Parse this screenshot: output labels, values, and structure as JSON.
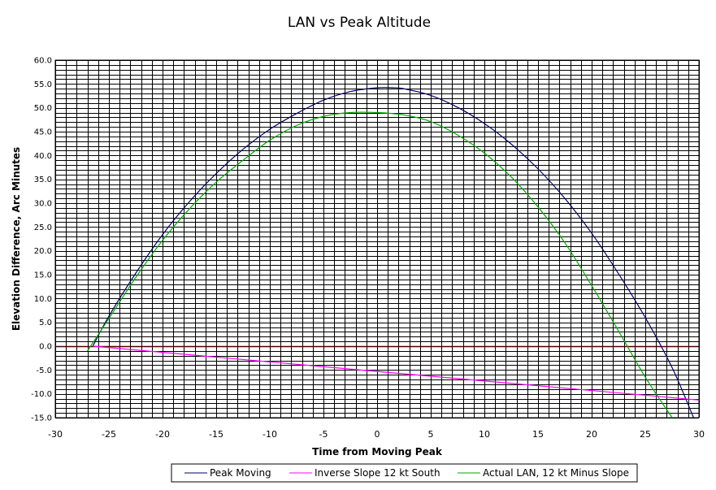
{
  "chart_data": {
    "type": "line",
    "title": "LAN vs Peak Altitude",
    "xlabel": "Time from Moving Peak",
    "ylabel": "Elevation Difference, Arc Minutes",
    "xlim": [
      -30,
      30
    ],
    "ylim": [
      -15,
      60
    ],
    "x_ticks": [
      -30,
      -25,
      -20,
      -15,
      -10,
      -5,
      0,
      5,
      10,
      15,
      20,
      25,
      30
    ],
    "y_ticks": [
      "60.0",
      "55.0",
      "50.0",
      "45.0",
      "40.0",
      "35.0",
      "30.0",
      "25.0",
      "20.0",
      "15.0",
      "10.0",
      "5.0",
      "0.0",
      "-5.0",
      "-10.0",
      "-15.0"
    ],
    "grid": true,
    "legend_position": "bottom",
    "zero_line_color": "#4a0000",
    "series": [
      {
        "name": "Peak Moving",
        "color": "#000066",
        "x": [
          -26.5,
          -25,
          -22.5,
          -20,
          -17.5,
          -15,
          -12.5,
          -10,
          -7.5,
          -5,
          -2.5,
          0,
          1.5,
          2.5,
          5,
          7.5,
          10,
          12.5,
          15,
          17.5,
          20,
          22.5,
          25,
          27.5,
          29.5
        ],
        "y": [
          0.0,
          6.3,
          15.3,
          23.4,
          30.3,
          36.2,
          41.3,
          45.5,
          48.8,
          51.6,
          53.4,
          54.2,
          54.2,
          54.0,
          52.6,
          50.1,
          46.7,
          42.4,
          37.2,
          31.0,
          23.7,
          15.2,
          6.0,
          -4.5,
          -15.0
        ]
      },
      {
        "name": "Inverse Slope 12 kt South",
        "color": "#ff00ff",
        "x": [
          -26.5,
          30
        ],
        "y": [
          0.0,
          -11.3
        ]
      },
      {
        "name": "Actual LAN, 12 kt Minus Slope",
        "color": "#00aa00",
        "x": [
          -27,
          -25,
          -22.5,
          -20,
          -17.5,
          -15,
          -12.5,
          -10,
          -7.5,
          -5,
          -2.5,
          0,
          2.5,
          5,
          7.5,
          10,
          12.5,
          15,
          17.5,
          20,
          22.5,
          25,
          27.5
        ],
        "y": [
          -1.0,
          5.8,
          14.4,
          22.2,
          28.8,
          34.4,
          39.0,
          43.2,
          46.3,
          48.2,
          49.0,
          49.0,
          48.5,
          47.1,
          44.3,
          40.5,
          35.5,
          29.2,
          21.7,
          12.7,
          3.2,
          -6.5,
          -15.0
        ]
      }
    ]
  }
}
